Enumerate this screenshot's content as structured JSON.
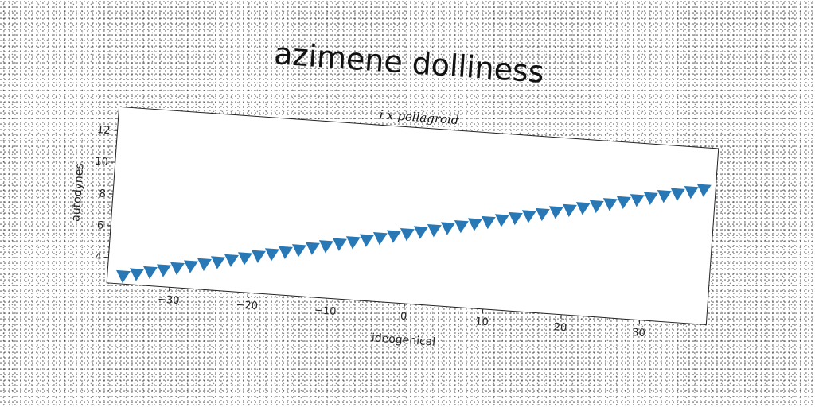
{
  "chart_data": {
    "type": "scatter",
    "title": "azimene dolliness",
    "subtitle": "i x pellagroid",
    "xlabel": "ideogenical",
    "ylabel": "autodynes",
    "xlim": [
      -38,
      38.5
    ],
    "ylim": [
      2.4,
      13.5
    ],
    "xticks": [
      -30,
      -20,
      -10,
      0,
      10,
      20,
      30
    ],
    "yticks": [
      4,
      6,
      8,
      10,
      12
    ],
    "grid": false,
    "legend": "none",
    "marker": "triangle-down",
    "color": "#2878b5",
    "x": [
      -36,
      -34.3,
      -32.6,
      -30.9,
      -29.2,
      -27.5,
      -25.8,
      -24.1,
      -22.4,
      -20.7,
      -19,
      -17.3,
      -15.6,
      -13.9,
      -12.2,
      -10.5,
      -8.8,
      -7.1,
      -5.4,
      -3.7,
      -2,
      -0.3,
      1.4,
      3.1,
      4.8,
      6.5,
      8.2,
      9.9,
      11.6,
      13.3,
      15,
      16.7,
      18.4,
      20.1,
      21.8,
      23.5,
      25.2,
      26.9,
      28.6,
      30.3,
      32,
      33.7,
      35.4,
      37
    ],
    "y": [
      2.9,
      3.08,
      3.27,
      3.45,
      3.64,
      3.82,
      4.01,
      4.19,
      4.38,
      4.56,
      4.75,
      4.93,
      5.12,
      5.3,
      5.49,
      5.67,
      5.86,
      6.04,
      6.23,
      6.41,
      6.6,
      6.78,
      6.97,
      7.15,
      7.34,
      7.52,
      7.71,
      7.89,
      8.08,
      8.26,
      8.45,
      8.63,
      8.82,
      9,
      9.19,
      9.37,
      9.56,
      9.74,
      9.93,
      10.11,
      10.3,
      10.48,
      10.67,
      10.85
    ]
  }
}
